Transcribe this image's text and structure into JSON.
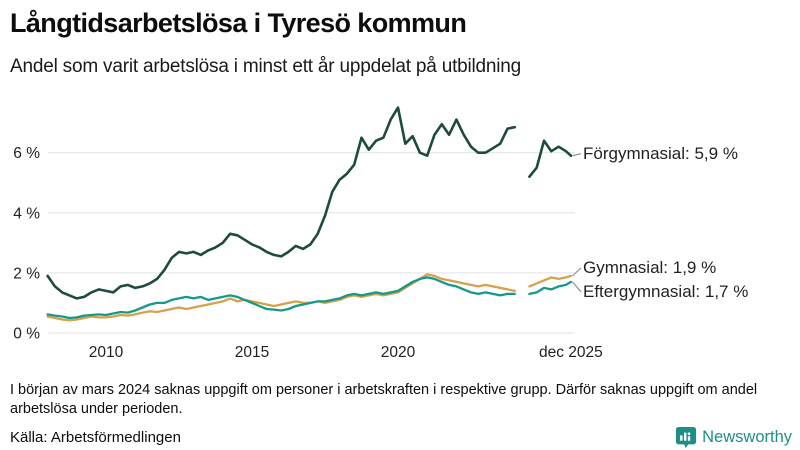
{
  "header": {
    "title": "Långtidsarbetslösa i Tyresö kommun",
    "subtitle": "Andel som varit arbetslösa i minst ett år uppdelat på utbildning"
  },
  "chart_data": {
    "type": "line",
    "title": "Långtidsarbetslösa i Tyresö kommun",
    "subtitle": "Andel som varit arbetslösa i minst ett år uppdelat på utbildning",
    "xlabel": "",
    "ylabel": "",
    "ylim": [
      0,
      7.9
    ],
    "grid": true,
    "legend_position": "right-annotations",
    "gap_note": "values missing from March 2024 (shown as line break)",
    "x": [
      2008,
      2008.25,
      2008.5,
      2008.75,
      2009,
      2009.25,
      2009.5,
      2009.75,
      2010,
      2010.25,
      2010.5,
      2010.75,
      2011,
      2011.25,
      2011.5,
      2011.75,
      2012,
      2012.25,
      2012.5,
      2012.75,
      2013,
      2013.25,
      2013.5,
      2013.75,
      2014,
      2014.25,
      2014.5,
      2014.75,
      2015,
      2015.25,
      2015.5,
      2015.75,
      2016,
      2016.25,
      2016.5,
      2016.75,
      2017,
      2017.25,
      2017.5,
      2017.75,
      2018,
      2018.25,
      2018.5,
      2018.75,
      2019,
      2019.25,
      2019.5,
      2019.75,
      2020,
      2020.25,
      2020.5,
      2020.75,
      2021,
      2021.25,
      2021.5,
      2021.75,
      2022,
      2022.25,
      2022.5,
      2022.75,
      2023,
      2023.25,
      2023.5,
      2023.75,
      2024,
      2024.25,
      2024.5,
      2024.75,
      2025,
      2025.25,
      2025.5,
      2025.75,
      2025.92
    ],
    "yticks": [
      {
        "v": 0,
        "label": "0 %"
      },
      {
        "v": 2,
        "label": "2 %"
      },
      {
        "v": 4,
        "label": "4 %"
      },
      {
        "v": 6,
        "label": "6 %"
      }
    ],
    "xticks": [
      {
        "v": 2010,
        "label": "2010"
      },
      {
        "v": 2015,
        "label": "2015"
      },
      {
        "v": 2020,
        "label": "2020"
      },
      {
        "v": 2025.92,
        "label": "dec 2025"
      }
    ],
    "series": [
      {
        "name": "Förgymnasial",
        "label": "Förgymnasial: 5,9 %",
        "end_value": "5,9 %",
        "color": "#1e4b3d",
        "values": [
          1.9,
          1.55,
          1.35,
          1.25,
          1.15,
          1.2,
          1.35,
          1.45,
          1.4,
          1.35,
          1.55,
          1.6,
          1.5,
          1.55,
          1.65,
          1.8,
          2.1,
          2.5,
          2.7,
          2.65,
          2.7,
          2.6,
          2.75,
          2.85,
          3.0,
          3.3,
          3.25,
          3.1,
          2.95,
          2.85,
          2.7,
          2.6,
          2.55,
          2.7,
          2.9,
          2.8,
          2.95,
          3.3,
          3.9,
          4.7,
          5.1,
          5.3,
          5.6,
          6.5,
          6.1,
          6.4,
          6.5,
          7.1,
          7.5,
          6.3,
          6.55,
          6.0,
          5.9,
          6.6,
          6.95,
          6.6,
          7.1,
          6.6,
          6.2,
          6.0,
          6.0,
          6.15,
          6.3,
          6.8,
          6.85,
          null,
          5.2,
          5.5,
          6.4,
          6.05,
          6.2,
          6.05,
          5.9
        ]
      },
      {
        "name": "Gymnasial",
        "label": "Gymnasial: 1,9 %",
        "end_value": "1,9 %",
        "color": "#d7a04a",
        "values": [
          0.55,
          0.5,
          0.45,
          0.42,
          0.45,
          0.5,
          0.55,
          0.52,
          0.52,
          0.55,
          0.6,
          0.58,
          0.62,
          0.68,
          0.72,
          0.7,
          0.75,
          0.8,
          0.85,
          0.8,
          0.85,
          0.9,
          0.95,
          1.0,
          1.05,
          1.15,
          1.05,
          1.1,
          1.05,
          1.0,
          0.95,
          0.9,
          0.95,
          1.0,
          1.05,
          1.0,
          1.0,
          1.05,
          1.0,
          1.05,
          1.1,
          1.2,
          1.25,
          1.2,
          1.25,
          1.3,
          1.25,
          1.3,
          1.35,
          1.5,
          1.65,
          1.8,
          1.95,
          1.9,
          1.8,
          1.75,
          1.7,
          1.65,
          1.6,
          1.55,
          1.6,
          1.55,
          1.5,
          1.45,
          1.4,
          null,
          1.55,
          1.65,
          1.75,
          1.85,
          1.8,
          1.85,
          1.9
        ]
      },
      {
        "name": "Eftergymnasial",
        "label": "Eftergymnasial: 1,7 %",
        "end_value": "1,7 %",
        "color": "#17998a",
        "values": [
          0.62,
          0.58,
          0.55,
          0.5,
          0.52,
          0.58,
          0.6,
          0.62,
          0.6,
          0.65,
          0.7,
          0.68,
          0.75,
          0.85,
          0.95,
          1.0,
          1.0,
          1.1,
          1.15,
          1.2,
          1.15,
          1.2,
          1.1,
          1.15,
          1.2,
          1.25,
          1.2,
          1.1,
          1.0,
          0.9,
          0.8,
          0.78,
          0.75,
          0.8,
          0.9,
          0.95,
          1.0,
          1.05,
          1.05,
          1.1,
          1.15,
          1.25,
          1.3,
          1.25,
          1.3,
          1.35,
          1.3,
          1.35,
          1.4,
          1.55,
          1.7,
          1.8,
          1.85,
          1.8,
          1.7,
          1.6,
          1.55,
          1.45,
          1.35,
          1.3,
          1.35,
          1.3,
          1.25,
          1.3,
          1.3,
          null,
          1.3,
          1.35,
          1.5,
          1.45,
          1.55,
          1.6,
          1.7
        ]
      }
    ]
  },
  "footer": {
    "note": "I början av mars 2024 saknas uppgift om personer i arbetskraften i respektive grupp. Därför saknas uppgift om andel arbetslösa under perioden.",
    "source": "Källa: Arbetsförmedlingen",
    "brand": "Newsworthy"
  },
  "colors": {
    "forgymnasial": "#1e4b3d",
    "gymnasial": "#d7a04a",
    "eftergymnasial": "#17998a",
    "gridline": "#e0e2e7",
    "brand_teal": "#1e8e86",
    "text": "#111111"
  }
}
